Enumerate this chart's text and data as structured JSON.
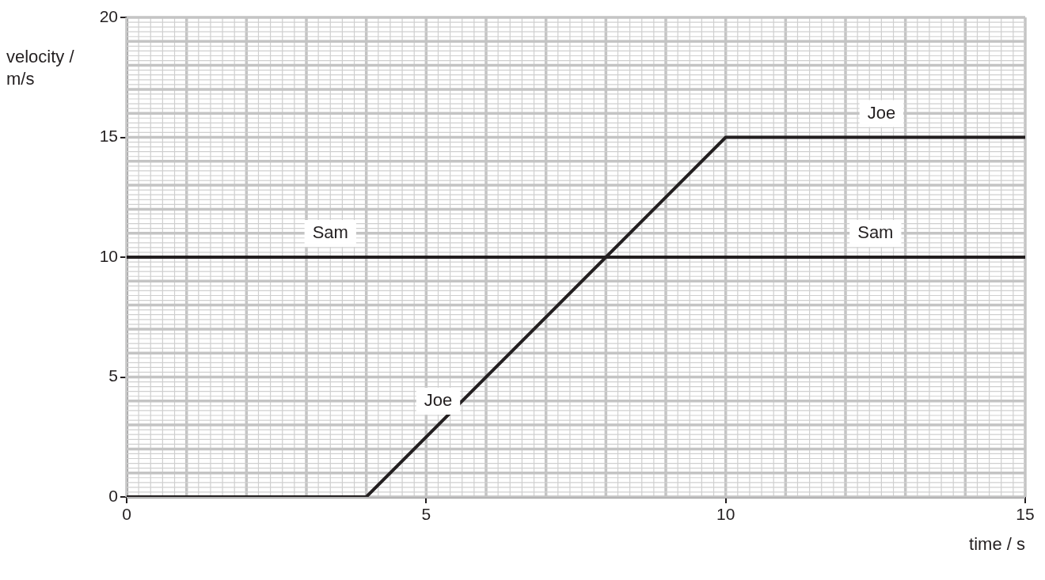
{
  "chart_data": {
    "type": "line",
    "xlabel": "time / s",
    "ylabel": "velocity / m/s",
    "series": [
      {
        "color": "#231f20",
        "x": [
          0,
          15
        ],
        "values": [
          10,
          10
        ]
      },
      {
        "color": "#231f20",
        "x": [
          0,
          4,
          10,
          15
        ],
        "values": [
          0,
          0,
          15,
          15
        ]
      }
    ],
    "xlim": [
      0,
      15
    ],
    "ylim": [
      0,
      20
    ],
    "xticks": [
      0,
      5,
      10,
      15
    ],
    "yticks": [
      0,
      5,
      10,
      15,
      20
    ],
    "grid": true,
    "legend": false,
    "marker": "none",
    "line_style": "solid",
    "annotations": [
      {
        "text": "Sam",
        "x": 3.4,
        "y": 10
      },
      {
        "text": "Sam",
        "x": 12.5,
        "y": 10
      },
      {
        "text": "Joe",
        "x": 5.2,
        "y": 3
      },
      {
        "text": "Joe",
        "x": 12.6,
        "y": 15
      }
    ]
  }
}
